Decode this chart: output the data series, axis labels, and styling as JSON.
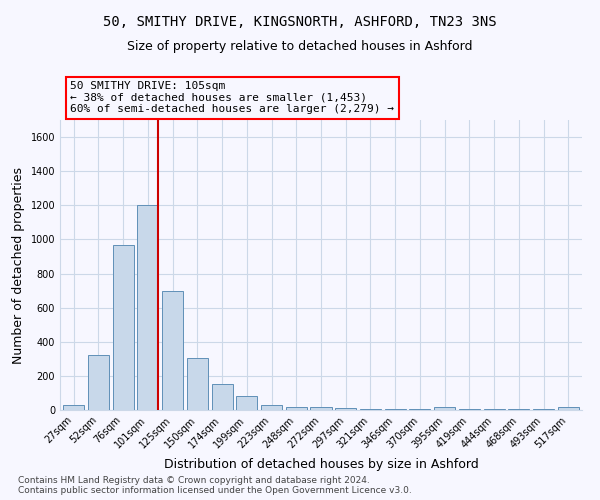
{
  "title_line1": "50, SMITHY DRIVE, KINGSNORTH, ASHFORD, TN23 3NS",
  "title_line2": "Size of property relative to detached houses in Ashford",
  "xlabel": "Distribution of detached houses by size in Ashford",
  "ylabel": "Number of detached properties",
  "bar_color": "#c8d8ea",
  "bar_edge_color": "#6090b8",
  "categories": [
    "27sqm",
    "52sqm",
    "76sqm",
    "101sqm",
    "125sqm",
    "150sqm",
    "174sqm",
    "199sqm",
    "223sqm",
    "248sqm",
    "272sqm",
    "297sqm",
    "321sqm",
    "346sqm",
    "370sqm",
    "395sqm",
    "419sqm",
    "444sqm",
    "468sqm",
    "493sqm",
    "517sqm"
  ],
  "values": [
    30,
    325,
    970,
    1200,
    700,
    305,
    155,
    80,
    27,
    15,
    15,
    13,
    5,
    5,
    5,
    15,
    5,
    5,
    5,
    5,
    15
  ],
  "ylim": [
    0,
    1700
  ],
  "yticks": [
    0,
    200,
    400,
    600,
    800,
    1000,
    1200,
    1400,
    1600
  ],
  "property_label": "50 SMITHY DRIVE: 105sqm",
  "annotation_line1": "← 38% of detached houses are smaller (1,453)",
  "annotation_line2": "60% of semi-detached houses are larger (2,279) →",
  "vline_color": "#cc0000",
  "vline_x": 3.425,
  "footnote": "Contains HM Land Registry data © Crown copyright and database right 2024.\nContains public sector information licensed under the Open Government Licence v3.0.",
  "background_color": "#f7f7ff",
  "grid_color": "#ccd8e8",
  "title_fontsize": 10,
  "subtitle_fontsize": 9,
  "axis_label_fontsize": 9,
  "tick_fontsize": 7,
  "footnote_fontsize": 6.5,
  "annotation_fontsize": 8
}
